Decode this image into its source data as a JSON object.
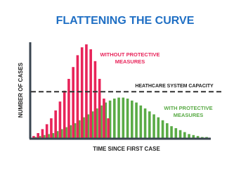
{
  "chart_data": {
    "type": "bar",
    "title": "FLATTENING THE CURVE",
    "x_label": "TIME SINCE FIRST CASE",
    "y_label": "NUMBER OF CASES",
    "capacity": 47,
    "capacity_label": "HEATHCARE SYSTEM CAPACITY",
    "ylim": [
      0,
      100
    ],
    "categories": [
      null,
      null,
      null,
      null,
      null,
      null,
      null,
      null,
      null,
      null,
      null,
      null,
      null,
      null,
      null,
      null,
      null,
      null,
      null,
      null,
      null,
      null,
      null,
      null,
      null,
      null,
      null,
      null,
      null,
      null,
      null,
      null,
      null,
      null,
      null,
      null,
      null,
      null,
      null,
      null
    ],
    "series": [
      {
        "label": [
          "WITHOUT PROTECTIVE",
          "MEASURES"
        ],
        "color": "#e8245a",
        "values": [
          2,
          5,
          9,
          14,
          20,
          28,
          37,
          48,
          60,
          72,
          84,
          92,
          95,
          90,
          78,
          60,
          40,
          20,
          null,
          null,
          null,
          null,
          null,
          null,
          null,
          null,
          null,
          null,
          null,
          null,
          null,
          null,
          null,
          null,
          null,
          null,
          null,
          null,
          null,
          null
        ]
      },
      {
        "label": [
          "WITH PROTECTIVE",
          "MEASURES"
        ],
        "color": "#5aab46",
        "values": [
          1,
          2,
          3,
          4,
          5,
          7,
          9,
          11,
          13,
          15,
          18,
          21,
          24,
          27,
          30,
          33,
          36,
          38,
          40,
          41,
          41,
          40,
          38,
          36,
          33,
          30,
          27,
          24,
          21,
          18,
          15,
          12,
          10,
          8,
          6,
          4,
          3,
          2,
          1,
          1
        ]
      }
    ]
  }
}
